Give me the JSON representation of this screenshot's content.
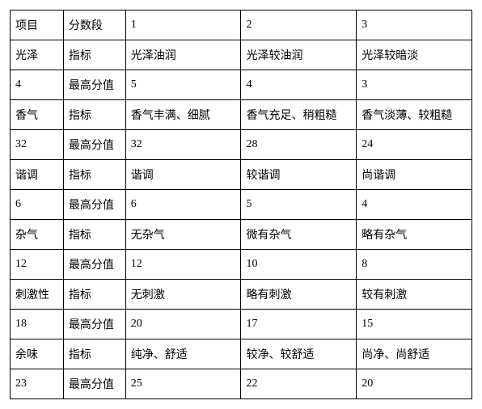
{
  "table": {
    "background_color": "#ffffff",
    "border_color": "#000000",
    "text_color": "#000000",
    "font_size": 14,
    "columns": 5,
    "col_widths_pct": [
      12,
      14,
      26,
      26,
      26
    ],
    "rows": [
      [
        "项目",
        "分数段",
        "1",
        "2",
        "3"
      ],
      [
        "光泽",
        "指标",
        "光泽油润",
        "光泽较油润",
        "光泽较暗淡"
      ],
      [
        "4",
        "最高分值",
        "5",
        "4",
        "3"
      ],
      [
        "香气",
        "指标",
        "香气丰满、细腻",
        "香气充足、稍粗糙",
        "香气淡薄、较粗糙"
      ],
      [
        "32",
        "最高分值",
        "32",
        "28",
        "24"
      ],
      [
        "谐调",
        "指标",
        "谐调",
        "较谐调",
        "尚谐调"
      ],
      [
        "6",
        "最高分值",
        "6",
        "5",
        "4"
      ],
      [
        "杂气",
        "指标",
        "无杂气",
        "微有杂气",
        "略有杂气"
      ],
      [
        "12",
        "最高分值",
        "12",
        "10",
        "8"
      ],
      [
        "刺激性",
        "指标",
        "无刺激",
        "略有刺激",
        "较有刺激"
      ],
      [
        "18",
        "最高分值",
        "20",
        "17",
        "15"
      ],
      [
        "余味",
        "指标",
        "纯净、舒适",
        "较净、较舒适",
        "尚净、尚舒适"
      ],
      [
        "23",
        "最高分值",
        "25",
        "22",
        "20"
      ]
    ]
  }
}
